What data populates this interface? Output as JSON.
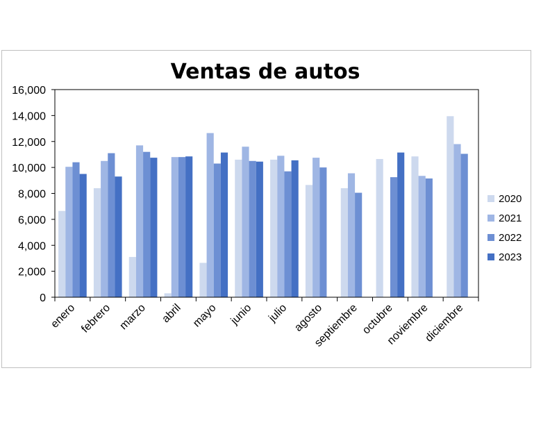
{
  "chart_data": {
    "type": "bar",
    "title": "Ventas de autos",
    "xlabel": "",
    "ylabel": "",
    "categories": [
      "enero",
      "febrero",
      "marzo",
      "abril",
      "mayo",
      "junio",
      "julio",
      "agosto",
      "septiembre",
      "octubre",
      "noviembre",
      "diciembre"
    ],
    "series": [
      {
        "name": "2020",
        "color": "#cdd9ee",
        "values": [
          6650,
          8400,
          3100,
          300,
          2650,
          10600,
          10600,
          8650,
          8400,
          10650,
          10850,
          13950
        ]
      },
      {
        "name": "2021",
        "color": "#9fb6e4",
        "values": [
          10050,
          10500,
          11700,
          10800,
          12650,
          11600,
          10900,
          10750,
          9550,
          null,
          9350,
          11800
        ]
      },
      {
        "name": "2022",
        "color": "#6d8fd3",
        "values": [
          10400,
          11100,
          11200,
          10800,
          10300,
          10500,
          9700,
          10000,
          8050,
          9250,
          9150,
          11050
        ]
      },
      {
        "name": "2023",
        "color": "#4470c4",
        "values": [
          9500,
          9300,
          10750,
          10850,
          11150,
          10450,
          10550,
          null,
          null,
          11150,
          null,
          null
        ]
      }
    ],
    "ylim": [
      0,
      16000
    ],
    "yticks": [
      0,
      2000,
      4000,
      6000,
      8000,
      10000,
      12000,
      14000,
      16000
    ],
    "ytick_labels": [
      "0",
      "2,000",
      "4,000",
      "6,000",
      "8,000",
      "10,000",
      "12,000",
      "14,000",
      "16,000"
    ],
    "grid": false,
    "legend_position": "right"
  }
}
